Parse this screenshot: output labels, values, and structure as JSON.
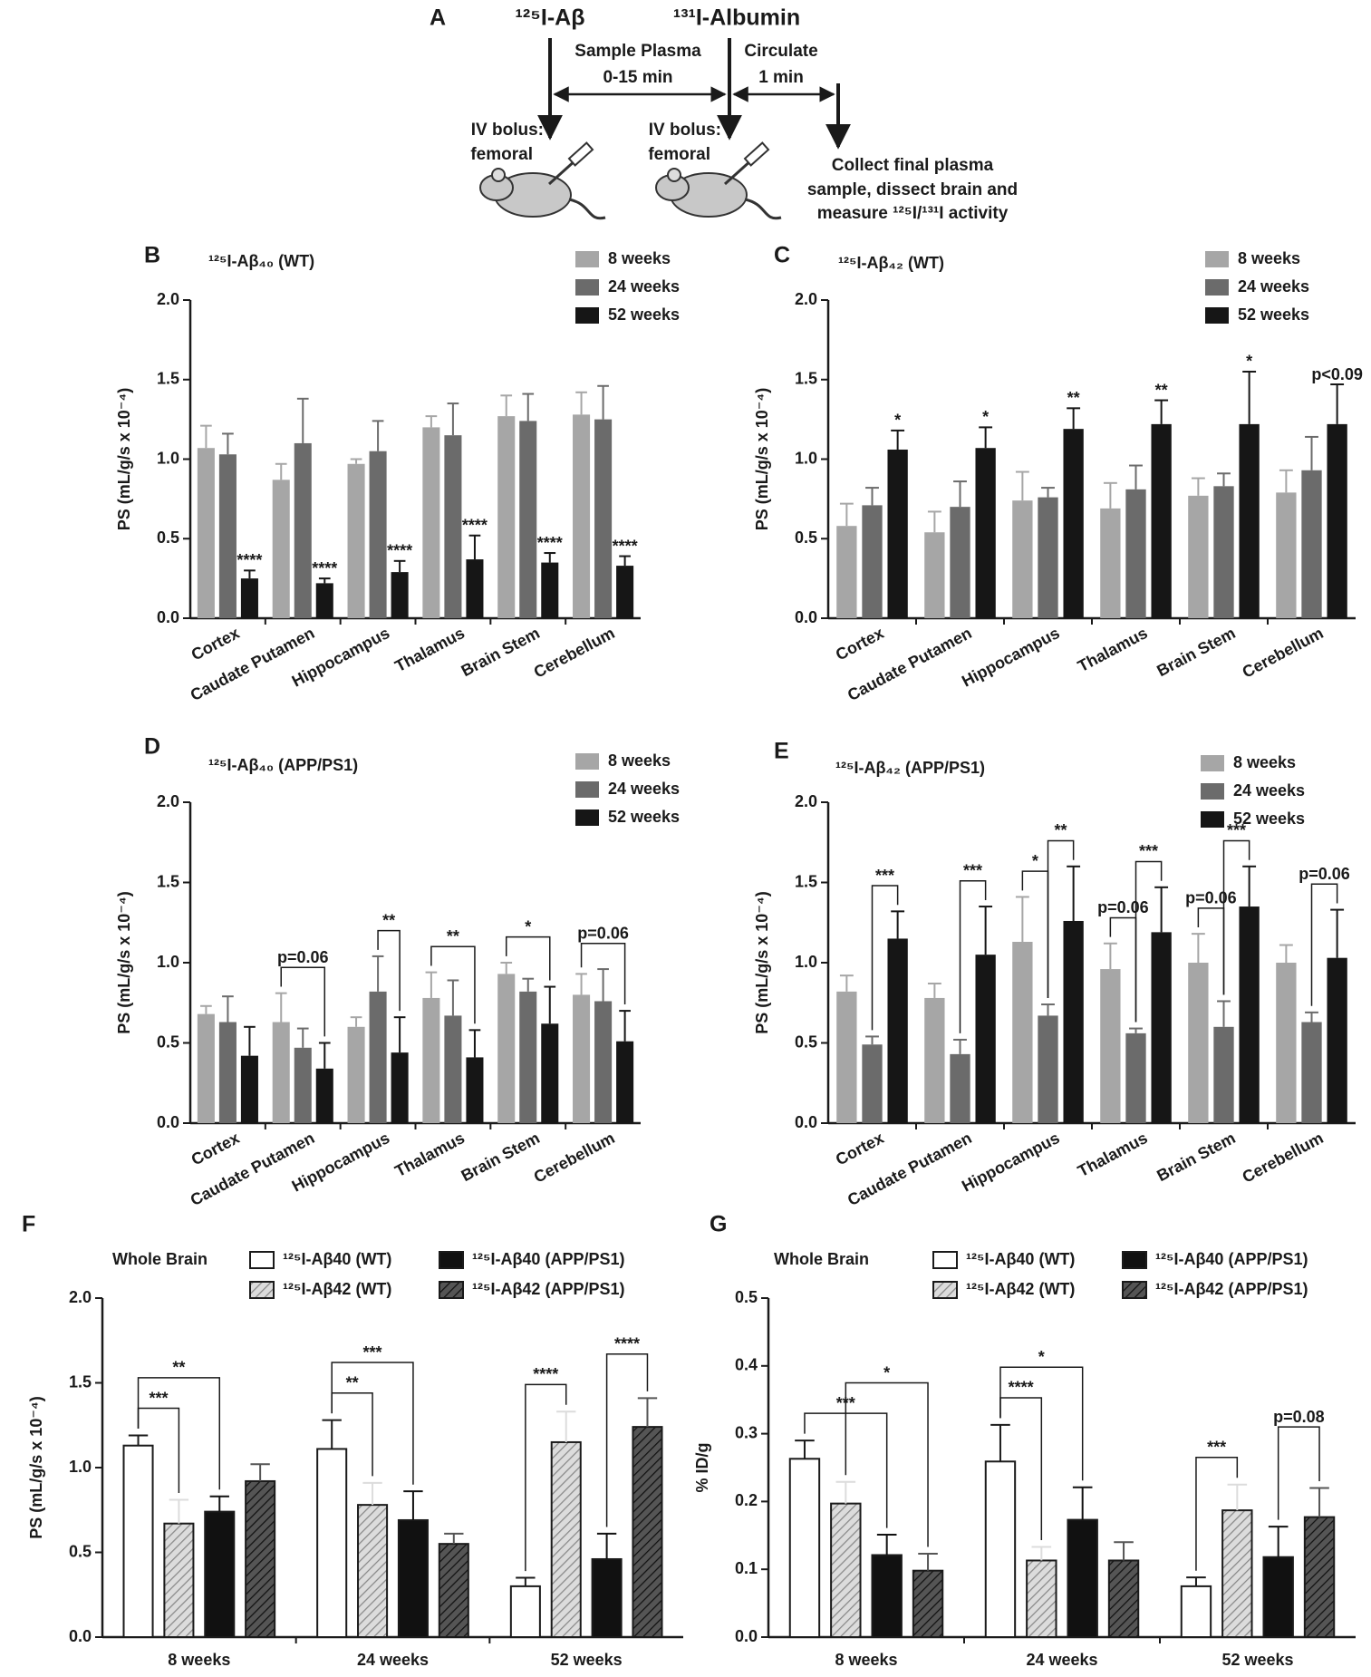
{
  "diagram": {
    "label": "A",
    "tracer_1": "¹²⁵I-Aβ",
    "tracer_2": "¹³¹I-Albumin",
    "phase_1": [
      "Sample Plasma",
      "0-15 min"
    ],
    "phase_2": [
      "Circulate",
      "1 min"
    ],
    "injection_1": [
      "IV bolus:",
      "femoral"
    ],
    "injection_2": [
      "IV bolus:",
      "femoral"
    ],
    "final_step": [
      "Collect final plasma",
      "sample, dissect brain and",
      "measure ¹²⁵I/¹³¹I activity"
    ]
  },
  "chart_data": [
    {
      "type": "bar",
      "panel": "B",
      "title": "¹²⁵I-Aβ₄₀ (WT)",
      "ylabel": "PS (mL/g/s x 10⁻⁴)",
      "categories": [
        "Cortex",
        "Caudate Putamen",
        "Hippocampus",
        "Thalamus",
        "Brain Stem",
        "Cerebellum"
      ],
      "series": [
        {
          "name": "8 weeks",
          "color": "#a6a6a6",
          "values": [
            1.07,
            0.87,
            0.97,
            1.2,
            1.27,
            1.28
          ],
          "errors": [
            0.14,
            0.1,
            0.03,
            0.07,
            0.13,
            0.14
          ]
        },
        {
          "name": "24 weeks",
          "color": "#6b6b6b",
          "values": [
            1.03,
            1.1,
            1.05,
            1.15,
            1.24,
            1.25
          ],
          "errors": [
            0.13,
            0.28,
            0.19,
            0.2,
            0.17,
            0.21
          ]
        },
        {
          "name": "52 weeks",
          "color": "#161616",
          "values": [
            0.25,
            0.22,
            0.29,
            0.37,
            0.35,
            0.33
          ],
          "errors": [
            0.05,
            0.03,
            0.07,
            0.15,
            0.06,
            0.06
          ],
          "stars": [
            "****",
            "****",
            "****",
            "****",
            "****",
            "****"
          ]
        }
      ],
      "ylim": [
        0,
        2
      ],
      "yticks": [
        {
          "value": 0,
          "label": "0.0"
        },
        0.5,
        {
          "value": 1,
          "label": "1.0"
        },
        1.5,
        {
          "value": 2,
          "label": "2.0"
        }
      ],
      "legend": "top-right"
    },
    {
      "type": "bar",
      "panel": "C",
      "title": "¹²⁵I-Aβ₄₂ (WT)",
      "ylabel": "PS (mL/g/s x 10⁻⁴)",
      "categories": [
        "Cortex",
        "Caudate Putamen",
        "Hippocampus",
        "Thalamus",
        "Brain Stem",
        "Cerebellum"
      ],
      "series": [
        {
          "name": "8 weeks",
          "color": "#a6a6a6",
          "values": [
            0.58,
            0.54,
            0.74,
            0.69,
            0.77,
            0.79
          ],
          "errors": [
            0.14,
            0.13,
            0.18,
            0.16,
            0.11,
            0.14
          ]
        },
        {
          "name": "24 weeks",
          "color": "#6b6b6b",
          "values": [
            0.71,
            0.7,
            0.76,
            0.81,
            0.83,
            0.93
          ],
          "errors": [
            0.11,
            0.16,
            0.06,
            0.15,
            0.08,
            0.21
          ]
        },
        {
          "name": "52 weeks",
          "color": "#161616",
          "values": [
            1.06,
            1.07,
            1.19,
            1.22,
            1.22,
            1.22
          ],
          "errors": [
            0.12,
            0.13,
            0.13,
            0.15,
            0.33,
            0.25
          ],
          "stars": [
            "*",
            "*",
            "**",
            "**",
            "*",
            "p<0.09"
          ]
        }
      ],
      "ylim": [
        0,
        2
      ],
      "yticks": [
        {
          "value": 0,
          "label": "0.0"
        },
        0.5,
        {
          "value": 1,
          "label": "1.0"
        },
        1.5,
        {
          "value": 2,
          "label": "2.0"
        }
      ],
      "legend": "top-right"
    },
    {
      "type": "bar",
      "panel": "D",
      "title": "¹²⁵I-Aβ₄₀ (APP/PS1)",
      "ylabel": "PS (mL/g/s x 10⁻⁴)",
      "categories": [
        "Cortex",
        "Caudate Putamen",
        "Hippocampus",
        "Thalamus",
        "Brain Stem",
        "Cerebellum"
      ],
      "series": [
        {
          "name": "8 weeks",
          "color": "#a6a6a6",
          "values": [
            0.68,
            0.63,
            0.6,
            0.78,
            0.93,
            0.8
          ],
          "errors": [
            0.05,
            0.18,
            0.06,
            0.16,
            0.07,
            0.13
          ]
        },
        {
          "name": "24 weeks",
          "color": "#6b6b6b",
          "values": [
            0.63,
            0.47,
            0.82,
            0.67,
            0.82,
            0.76
          ],
          "errors": [
            0.16,
            0.12,
            0.22,
            0.22,
            0.08,
            0.2
          ]
        },
        {
          "name": "52 weeks",
          "color": "#161616",
          "values": [
            0.42,
            0.34,
            0.44,
            0.41,
            0.62,
            0.51
          ],
          "errors": [
            0.18,
            0.16,
            0.22,
            0.17,
            0.23,
            0.19
          ]
        }
      ],
      "brackets": [
        {
          "text": "p=0.06",
          "at": "Caudate Putamen",
          "between": [
            "8 weeks",
            "52 weeks"
          ]
        },
        {
          "text": "**",
          "at": "Hippocampus",
          "between": [
            "24 weeks",
            "52 weeks"
          ]
        },
        {
          "text": "**",
          "at": "Thalamus",
          "between": [
            "8 weeks",
            "52 weeks"
          ]
        },
        {
          "text": "*",
          "at": "Brain Stem",
          "between": [
            "8 weeks",
            "52 weeks"
          ]
        },
        {
          "text": "p=0.06",
          "at": "Cerebellum",
          "between": [
            "8 weeks",
            "52 weeks"
          ]
        }
      ],
      "ylim": [
        0,
        2
      ],
      "yticks": [
        {
          "value": 0,
          "label": "0.0"
        },
        0.5,
        {
          "value": 1,
          "label": "1.0"
        },
        1.5,
        {
          "value": 2,
          "label": "2.0"
        }
      ],
      "legend": "top-right"
    },
    {
      "type": "bar",
      "panel": "E",
      "title": "¹²⁵I-Aβ₄₂ (APP/PS1)",
      "ylabel": "PS (mL/g/s x 10⁻⁴)",
      "categories": [
        "Cortex",
        "Caudate Putamen",
        "Hippocampus",
        "Thalamus",
        "Brain Stem",
        "Cerebellum"
      ],
      "series": [
        {
          "name": "8 weeks",
          "color": "#a6a6a6",
          "values": [
            0.82,
            0.78,
            1.13,
            0.96,
            1.0,
            1.0
          ],
          "errors": [
            0.1,
            0.09,
            0.28,
            0.16,
            0.18,
            0.11
          ]
        },
        {
          "name": "24 weeks",
          "color": "#6b6b6b",
          "values": [
            0.49,
            0.43,
            0.67,
            0.56,
            0.6,
            0.63
          ],
          "errors": [
            0.05,
            0.09,
            0.07,
            0.03,
            0.16,
            0.06
          ]
        },
        {
          "name": "52 weeks",
          "color": "#161616",
          "values": [
            1.15,
            1.05,
            1.26,
            1.19,
            1.35,
            1.03
          ],
          "errors": [
            0.17,
            0.3,
            0.34,
            0.28,
            0.25,
            0.3
          ]
        }
      ],
      "brackets": [
        {
          "text": "***",
          "at": "Cortex",
          "between": [
            "24 weeks",
            "52 weeks"
          ]
        },
        {
          "text": "***",
          "at": "Caudate Putamen",
          "between": [
            "24 weeks",
            "52 weeks"
          ]
        },
        {
          "text": "*",
          "at": "Hippocampus",
          "between": [
            "8 weeks",
            "24 weeks"
          ]
        },
        {
          "text": "**",
          "at": "Hippocampus",
          "between": [
            "24 weeks",
            "52 weeks"
          ]
        },
        {
          "text": "p=0.06",
          "at": "Thalamus",
          "between": [
            "8 weeks",
            "24 weeks"
          ]
        },
        {
          "text": "***",
          "at": "Thalamus",
          "between": [
            "24 weeks",
            "52 weeks"
          ]
        },
        {
          "text": "p=0.06",
          "at": "Brain Stem",
          "between": [
            "8 weeks",
            "24 weeks"
          ]
        },
        {
          "text": "***",
          "at": "Brain Stem",
          "between": [
            "24 weeks",
            "52 weeks"
          ]
        },
        {
          "text": "p=0.06",
          "at": "Cerebellum",
          "between": [
            "24 weeks",
            "52 weeks"
          ]
        }
      ],
      "ylim": [
        0,
        2
      ],
      "yticks": [
        {
          "value": 0,
          "label": "0.0"
        },
        0.5,
        {
          "value": 1,
          "label": "1.0"
        },
        1.5,
        {
          "value": 2,
          "label": "2.0"
        }
      ],
      "legend": "top-right"
    },
    {
      "type": "bar",
      "panel": "F",
      "title": "Whole Brain",
      "ylabel": "PS (mL/g/s x 10⁻⁴)",
      "categories": [
        "8 weeks",
        "24 weeks",
        "52 weeks"
      ],
      "series": [
        {
          "name": "¹²⁵I-Aβ40 (WT)",
          "color": "#ffffff",
          "values": [
            1.13,
            1.11,
            0.3
          ],
          "errors": [
            0.06,
            0.17,
            0.05
          ]
        },
        {
          "name": "¹²⁵I-Aβ42 (WT)",
          "color": "#dcdcdc",
          "pattern": "hatch",
          "values": [
            0.67,
            0.78,
            1.15
          ],
          "errors": [
            0.14,
            0.13,
            0.18
          ]
        },
        {
          "name": "¹²⁵I-Aβ40 (APP/PS1)",
          "color": "#111111",
          "values": [
            0.74,
            0.69,
            0.46
          ],
          "errors": [
            0.09,
            0.17,
            0.15
          ]
        },
        {
          "name": "¹²⁵I-Aβ42 (APP/PS1)",
          "color": "#555555",
          "pattern": "hatch",
          "values": [
            0.92,
            0.55,
            1.24
          ],
          "errors": [
            0.1,
            0.06,
            0.17
          ]
        }
      ],
      "brackets": [
        {
          "text": "***",
          "at": "8 weeks",
          "between": [
            "¹²⁵I-Aβ40 (WT)",
            "¹²⁵I-Aβ42 (WT)"
          ]
        },
        {
          "text": "**",
          "at": "8 weeks",
          "between": [
            "¹²⁵I-Aβ40 (WT)",
            "¹²⁵I-Aβ40 (APP/PS1)"
          ]
        },
        {
          "text": "**",
          "at": "24 weeks",
          "between": [
            "¹²⁵I-Aβ40 (WT)",
            "¹²⁵I-Aβ42 (WT)"
          ]
        },
        {
          "text": "***",
          "at": "24 weeks",
          "between": [
            "¹²⁵I-Aβ40 (WT)",
            "¹²⁵I-Aβ40 (APP/PS1)"
          ]
        },
        {
          "text": "****",
          "at": "52 weeks",
          "between": [
            "¹²⁵I-Aβ40 (WT)",
            "¹²⁵I-Aβ42 (WT)"
          ]
        },
        {
          "text": "****",
          "at": "52 weeks",
          "between": [
            "¹²⁵I-Aβ40 (APP/PS1)",
            "¹²⁵I-Aβ42 (APP/PS1)"
          ]
        }
      ],
      "ylim": [
        0,
        2
      ],
      "yticks": [
        {
          "value": 0,
          "label": "0.0"
        },
        0.5,
        {
          "value": 1,
          "label": "1.0"
        },
        1.5,
        {
          "value": 2,
          "label": "2.0"
        }
      ],
      "legend": "top"
    },
    {
      "type": "bar",
      "panel": "G",
      "title": "Whole Brain",
      "ylabel": "% ID/g",
      "categories": [
        "8 weeks",
        "24 weeks",
        "52 weeks"
      ],
      "series": [
        {
          "name": "¹²⁵I-Aβ40 (WT)",
          "color": "#ffffff",
          "values": [
            0.263,
            0.259,
            0.075
          ],
          "errors": [
            0.027,
            0.054,
            0.013
          ]
        },
        {
          "name": "¹²⁵I-Aβ42 (WT)",
          "color": "#dcdcdc",
          "pattern": "hatch",
          "values": [
            0.197,
            0.113,
            0.187
          ],
          "errors": [
            0.032,
            0.02,
            0.038
          ]
        },
        {
          "name": "¹²⁵I-Aβ40 (APP/PS1)",
          "color": "#111111",
          "values": [
            0.121,
            0.173,
            0.118
          ],
          "errors": [
            0.03,
            0.048,
            0.045
          ]
        },
        {
          "name": "¹²⁵I-Aβ42 (APP/PS1)",
          "color": "#555555",
          "pattern": "hatch",
          "values": [
            0.098,
            0.113,
            0.177
          ],
          "errors": [
            0.025,
            0.027,
            0.043
          ]
        }
      ],
      "brackets": [
        {
          "text": "***",
          "at": "8 weeks",
          "between": [
            "¹²⁵I-Aβ40 (WT)",
            "¹²⁵I-Aβ40 (APP/PS1)"
          ]
        },
        {
          "text": "*",
          "at": "8 weeks",
          "between": [
            "¹²⁵I-Aβ42 (WT)",
            "¹²⁵I-Aβ42 (APP/PS1)"
          ]
        },
        {
          "text": "****",
          "at": "24 weeks",
          "between": [
            "¹²⁵I-Aβ40 (WT)",
            "¹²⁵I-Aβ42 (WT)"
          ]
        },
        {
          "text": "*",
          "at": "24 weeks",
          "between": [
            "¹²⁵I-Aβ40 (WT)",
            "¹²⁵I-Aβ40 (APP/PS1)"
          ]
        },
        {
          "text": "***",
          "at": "52 weeks",
          "between": [
            "¹²⁵I-Aβ40 (WT)",
            "¹²⁵I-Aβ42 (WT)"
          ]
        },
        {
          "text": "p=0.08",
          "at": "52 weeks",
          "between": [
            "¹²⁵I-Aβ40 (APP/PS1)",
            "¹²⁵I-Aβ42 (APP/PS1)"
          ]
        }
      ],
      "ylim": [
        0,
        0.5
      ],
      "yticks": [
        {
          "value": 0,
          "label": "0.0"
        },
        0.1,
        0.2,
        0.3,
        0.4,
        0.5
      ],
      "legend": "top"
    }
  ]
}
